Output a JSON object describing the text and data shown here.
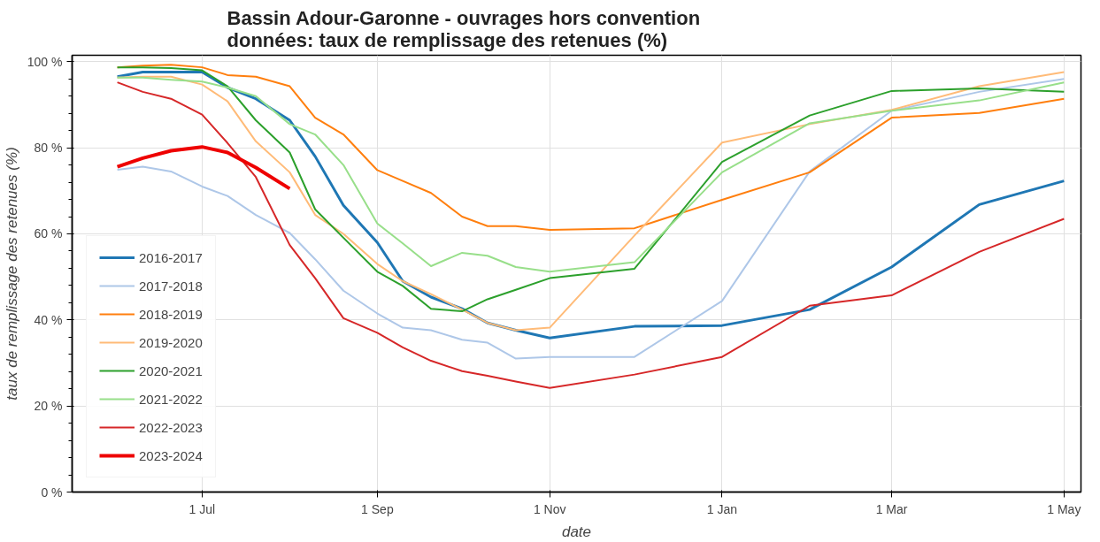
{
  "chart_data": {
    "type": "line",
    "title": "Bassin Adour-Garonne - ouvrages hors convention\ndonnées: taux de remplissage des retenues (%)",
    "xlabel": "date",
    "ylabel": "taux de remplissage des retenues (%)",
    "x": [
      "2023-06-01",
      "2023-06-10",
      "2023-06-20",
      "2023-07-01",
      "2023-07-10",
      "2023-07-20",
      "2023-08-01",
      "2023-08-10",
      "2023-08-20",
      "2023-09-01",
      "2023-09-10",
      "2023-09-20",
      "2023-10-01",
      "2023-10-10",
      "2023-10-20",
      "2023-11-01",
      "2023-12-01",
      "2024-01-01",
      "2024-02-01",
      "2024-03-01",
      "2024-04-01",
      "2024-05-01"
    ],
    "xlim": [
      "2023-05-16",
      "2024-05-07"
    ],
    "xticks": [
      {
        "value": "2023-07-01",
        "label": "1 Jul"
      },
      {
        "value": "2023-09-01",
        "label": "1 Sep"
      },
      {
        "value": "2023-11-01",
        "label": "1 Nov"
      },
      {
        "value": "2024-01-01",
        "label": "1 Jan"
      },
      {
        "value": "2024-03-01",
        "label": "1 Mar"
      },
      {
        "value": "2024-05-01",
        "label": "1 May"
      }
    ],
    "ylim": [
      0,
      101.5
    ],
    "yticks": [
      {
        "value": 0,
        "label": "0 %"
      },
      {
        "value": 20,
        "label": "20 %"
      },
      {
        "value": 40,
        "label": "40 %"
      },
      {
        "value": 60,
        "label": "60 %"
      },
      {
        "value": 80,
        "label": "80 %"
      },
      {
        "value": 100,
        "label": "100 %"
      }
    ],
    "grid": true,
    "legend": "bottom left",
    "line_style": "solid",
    "series": [
      {
        "name": "2016-2017",
        "color": "#1f77b4",
        "values": [
          96.5,
          97.6,
          97.6,
          97.6,
          94,
          91.4,
          86.4,
          78,
          66.6,
          58,
          49,
          45.3,
          42.6,
          39.3,
          37.6,
          35.8,
          38.5,
          38.7,
          42.4,
          52.3,
          66.8,
          72.3
        ]
      },
      {
        "name": "2017-2018",
        "color": "#aec7e8",
        "values": [
          74.9,
          75.6,
          74.5,
          71,
          68.8,
          64.4,
          60.2,
          54.1,
          46.8,
          41.5,
          38.2,
          37.6,
          35.4,
          34.7,
          31,
          31.4,
          31.4,
          44.4,
          74.5,
          88.6,
          93,
          96
        ]
      },
      {
        "name": "2018-2019",
        "color": "#ff7f0e",
        "values": [
          98.7,
          99.1,
          99.3,
          98.7,
          96.9,
          96.5,
          94.3,
          87,
          83.1,
          74.8,
          72.3,
          69.5,
          64,
          61.8,
          61.8,
          60.9,
          61.3,
          67.9,
          74.3,
          87,
          88.1,
          91.4
        ]
      },
      {
        "name": "2019-2020",
        "color": "#ffbb78",
        "values": [
          96.3,
          96.5,
          96.5,
          94.7,
          90.8,
          81.5,
          74.3,
          64.4,
          60,
          53,
          49,
          46,
          42.4,
          39.3,
          37.6,
          38.2,
          59.6,
          81.2,
          85.5,
          88.8,
          94.3,
          97.6
        ]
      },
      {
        "name": "2020-2021",
        "color": "#2ca02c",
        "values": [
          98.7,
          98.7,
          98.5,
          98,
          94.3,
          86.4,
          78.9,
          65.7,
          59.1,
          51.2,
          47.9,
          42.6,
          42,
          44.8,
          47,
          49.7,
          51.9,
          76.7,
          87.5,
          93.2,
          93.8,
          93
        ]
      },
      {
        "name": "2021-2022",
        "color": "#98df8a",
        "values": [
          96.3,
          96.3,
          95.8,
          95.4,
          94,
          92,
          85.5,
          83.1,
          76,
          62.4,
          57.8,
          52.5,
          55.6,
          54.9,
          52.3,
          51.2,
          53.4,
          74.3,
          85.7,
          88.6,
          91,
          95.2
        ]
      },
      {
        "name": "2022-2023",
        "color": "#d62728",
        "values": [
          95.2,
          93,
          91.4,
          87.7,
          81.1,
          73.2,
          57.4,
          49.7,
          40.4,
          37,
          33.6,
          30.5,
          28.1,
          27,
          25.7,
          24.2,
          27.3,
          31.4,
          43.3,
          45.7,
          55.8,
          63.5
        ]
      },
      {
        "name": "2023-2024",
        "color": "#ee0000",
        "values": [
          75.6,
          77.6,
          79.3,
          80.2,
          78.9,
          75.4,
          70.5,
          null,
          null,
          null,
          null,
          null,
          null,
          null,
          null,
          null,
          null,
          null,
          null,
          null,
          null,
          null
        ]
      }
    ]
  }
}
